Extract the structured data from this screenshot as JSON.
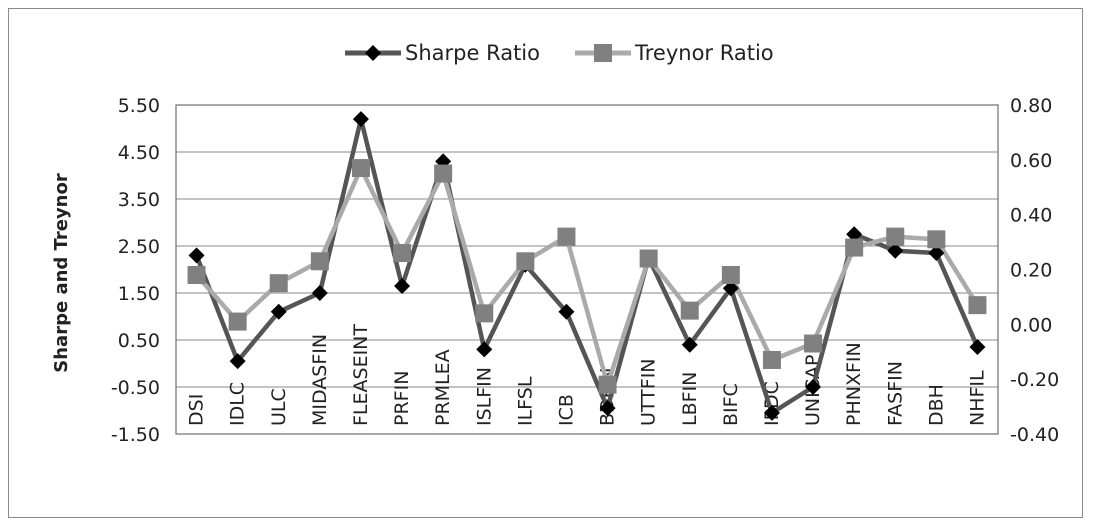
{
  "chart_data": {
    "type": "line",
    "ylabel": "Sharpe and Treynor",
    "categories": [
      "DSI",
      "IDLC",
      "ULC",
      "MIDASFIN",
      "FLEASEINT",
      "PRFIN",
      "PRMLEA",
      "ISLFIN",
      "ILFSL",
      "ICB",
      "BDFIN",
      "UTTFIN",
      "LBFIN",
      "BIFC",
      "IPDC",
      "UNICAP",
      "PHNXFIN",
      "FASFIN",
      "DBH",
      "NHFIL"
    ],
    "ylim_left": [
      -1.5,
      5.5
    ],
    "ylim_right": [
      -0.4,
      0.8
    ],
    "left_ticks": [
      "5.50",
      "4.50",
      "3.50",
      "2.50",
      "1.50",
      "0.50",
      "-0.50",
      "-1.50"
    ],
    "right_ticks": [
      "0.80",
      "0.60",
      "0.40",
      "0.20",
      "0.00",
      "-0.20",
      "-0.40"
    ],
    "legend_position": "top",
    "series": [
      {
        "name": "Sharpe Ratio",
        "axis": "left",
        "color": "#555555",
        "marker": "diamond",
        "values": [
          2.3,
          0.05,
          1.1,
          1.5,
          5.2,
          1.65,
          4.3,
          0.3,
          2.1,
          1.1,
          -0.95,
          2.25,
          0.4,
          1.6,
          -1.05,
          -0.5,
          2.75,
          2.4,
          2.35,
          0.35
        ]
      },
      {
        "name": "Treynor Ratio",
        "axis": "right",
        "color": "#aaaaaa",
        "marker": "square",
        "values": [
          0.18,
          0.01,
          0.15,
          0.23,
          0.57,
          0.26,
          0.55,
          0.04,
          0.23,
          0.32,
          -0.22,
          0.24,
          0.05,
          0.18,
          -0.13,
          -0.07,
          0.28,
          0.32,
          0.31,
          0.07
        ]
      }
    ],
    "grid": true
  }
}
